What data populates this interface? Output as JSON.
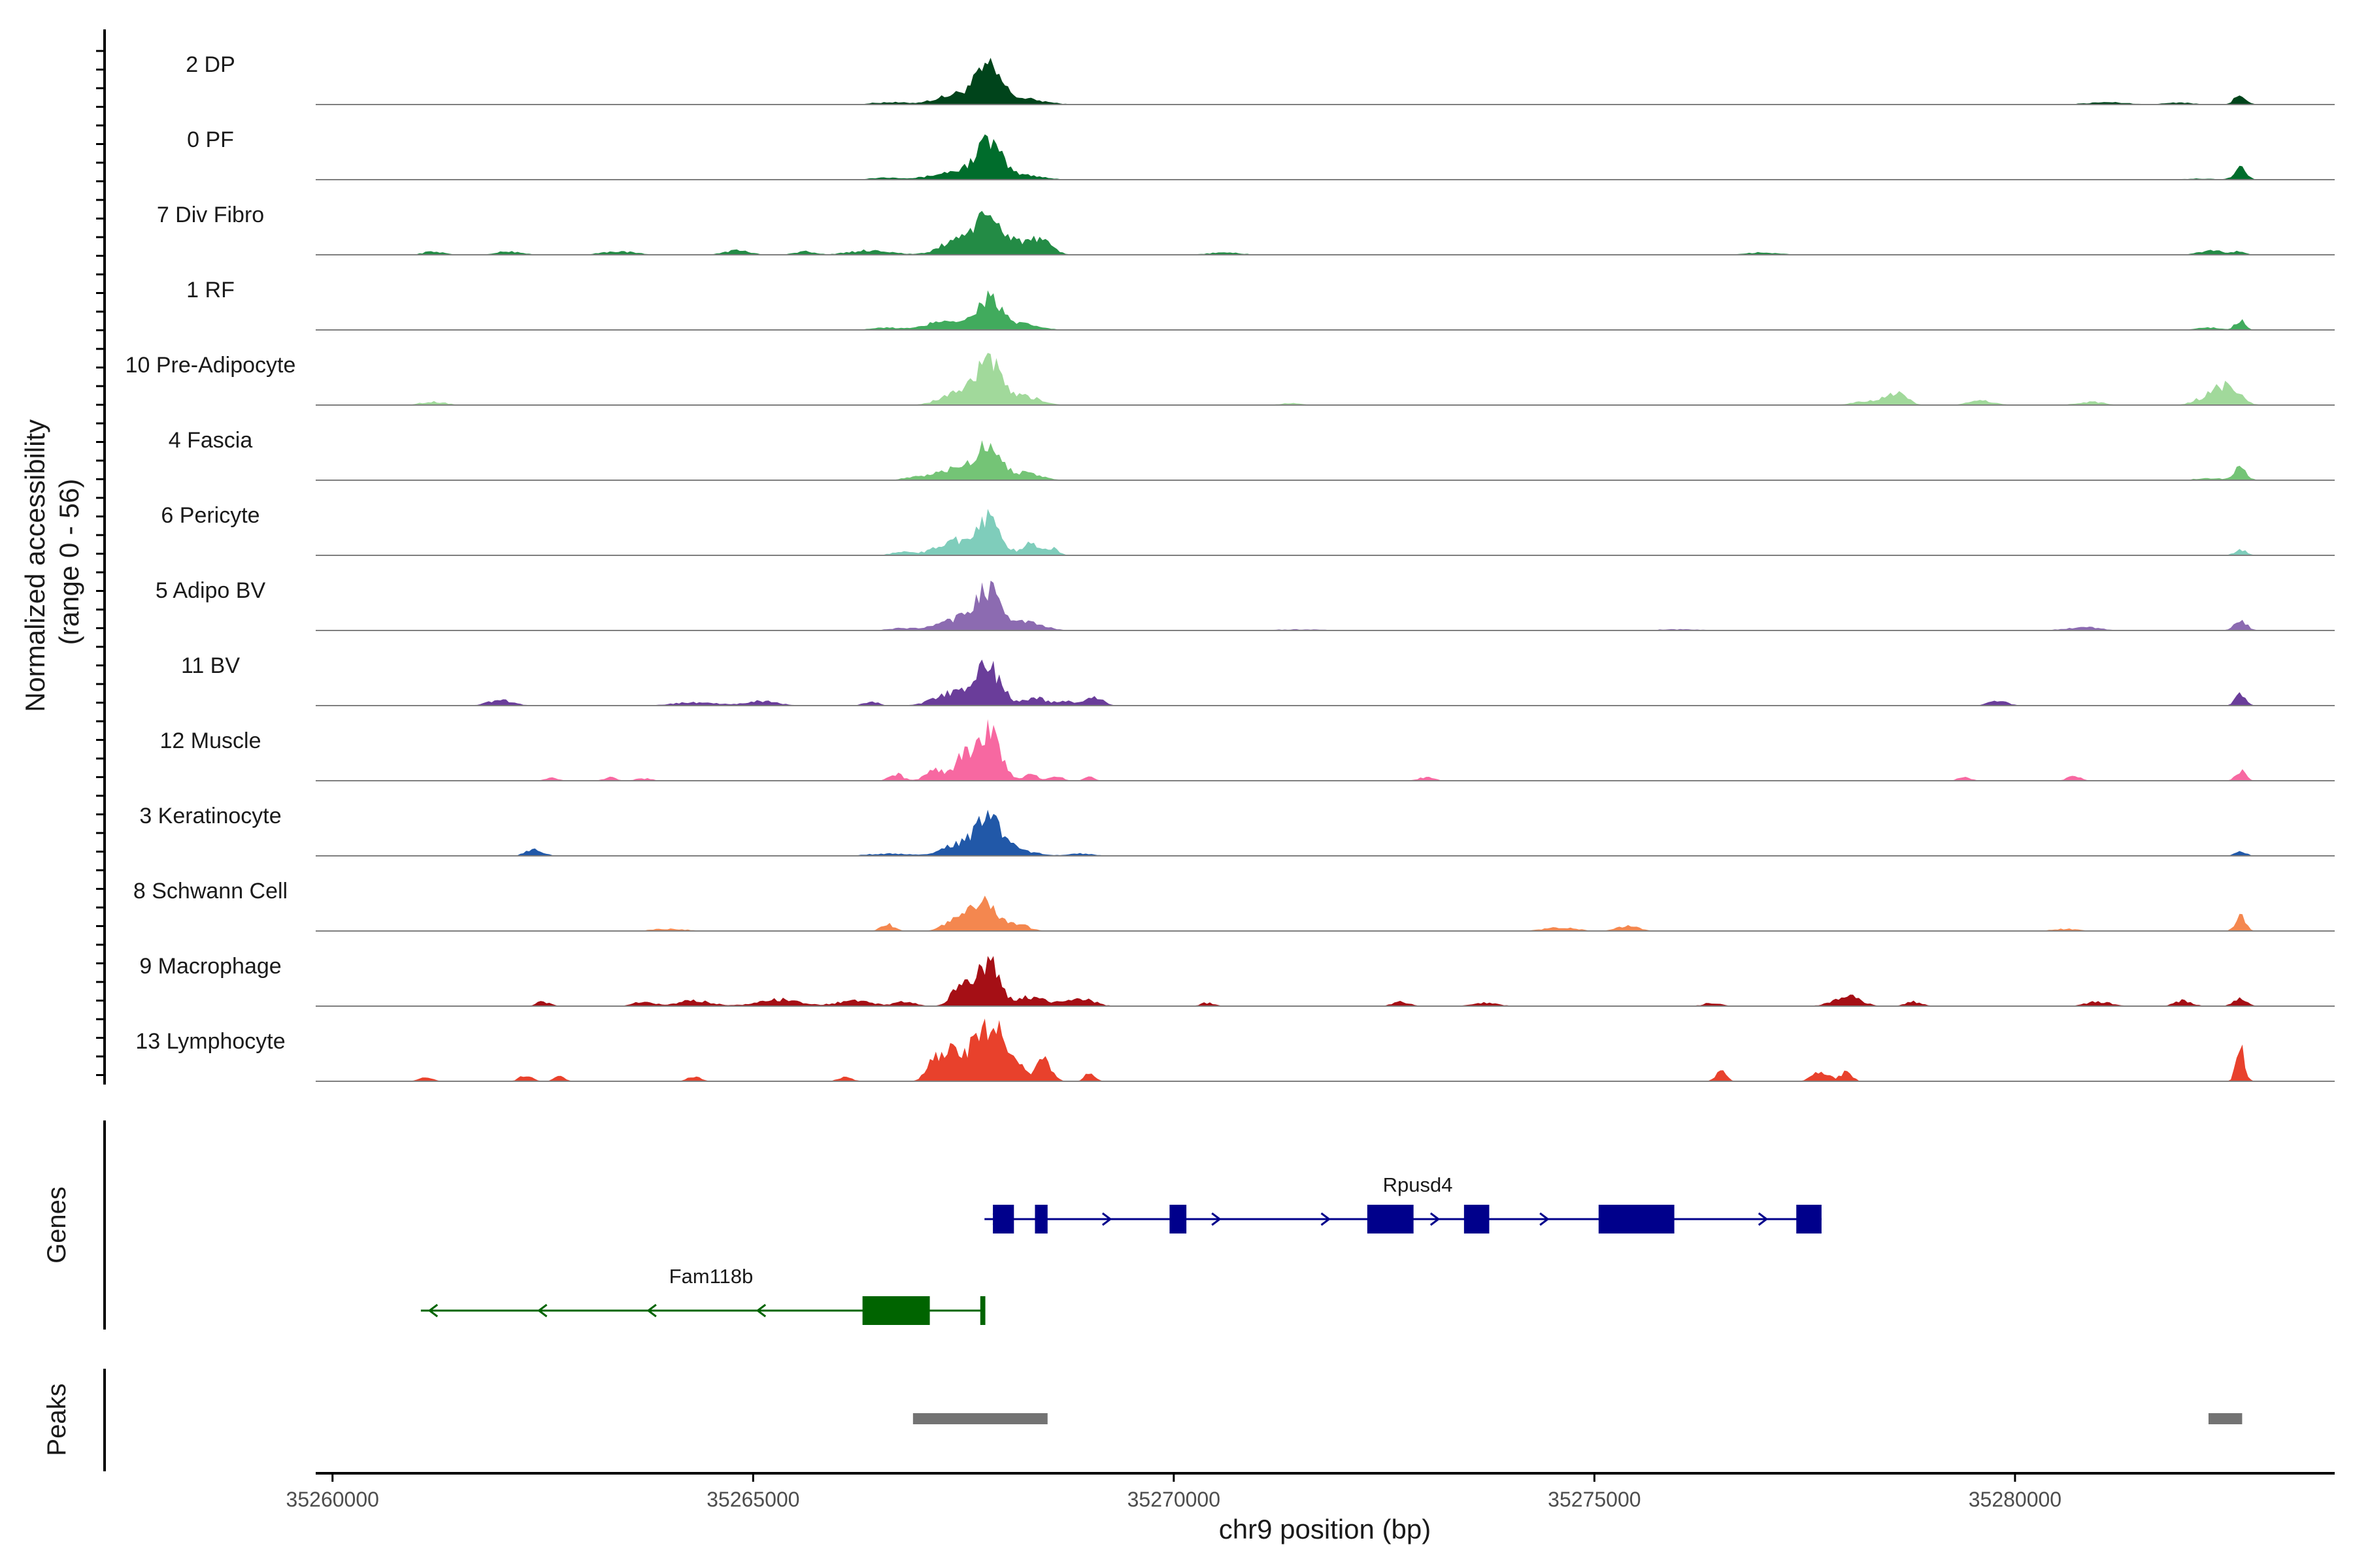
{
  "chart_data": {
    "type": "area",
    "title": "",
    "ylabel": "Normalized accessibility\n(range 0 - 56)",
    "ylabel_lines": [
      "Normalized accessibility",
      "(range 0 - 56)"
    ],
    "y_range": [
      0,
      56
    ],
    "xlabel": "chr9 position (bp)",
    "xlim": [
      35259800,
      35283800
    ],
    "x_ticks": [
      35260000,
      35265000,
      35270000,
      35275000,
      35280000
    ],
    "x_tick_labels": [
      "35260000",
      "35265000",
      "35270000",
      "35275000",
      "35280000"
    ],
    "series": [
      {
        "name": "2 DP",
        "color": "#00441b",
        "peaks": [
          [
            35267800,
            28,
            150
          ],
          [
            35267450,
            9,
            260
          ],
          [
            35268200,
            5,
            250
          ],
          [
            35266600,
            2,
            200
          ],
          [
            35282680,
            9,
            70
          ],
          [
            35281100,
            2,
            250
          ],
          [
            35281950,
            2,
            150
          ]
        ]
      },
      {
        "name": "0 PF",
        "color": "#006d2c",
        "peaks": [
          [
            35267800,
            32,
            150
          ],
          [
            35267400,
            7,
            250
          ],
          [
            35268250,
            4,
            200
          ],
          [
            35266600,
            2,
            200
          ],
          [
            35282680,
            10,
            70
          ],
          [
            35282200,
            1,
            200
          ]
        ]
      },
      {
        "name": "7 Div Fibro",
        "color": "#238b45",
        "peaks": [
          [
            35267800,
            28,
            160
          ],
          [
            35267450,
            14,
            200
          ],
          [
            35268200,
            11,
            200
          ],
          [
            35268450,
            7,
            120
          ],
          [
            35261200,
            3,
            120
          ],
          [
            35262100,
            3,
            150
          ],
          [
            35263400,
            3,
            200
          ],
          [
            35264800,
            4,
            150
          ],
          [
            35265600,
            3,
            120
          ],
          [
            35266400,
            4,
            250
          ],
          [
            35282350,
            4,
            150
          ],
          [
            35282680,
            3,
            60
          ],
          [
            35277000,
            2,
            200
          ],
          [
            35270600,
            2,
            200
          ]
        ]
      },
      {
        "name": "1 RF",
        "color": "#41ab5d",
        "peaks": [
          [
            35267800,
            28,
            140
          ],
          [
            35267300,
            9,
            200
          ],
          [
            35268200,
            5,
            200
          ],
          [
            35266600,
            2,
            200
          ],
          [
            35282680,
            9,
            60
          ],
          [
            35282300,
            2,
            150
          ]
        ]
      },
      {
        "name": "10 Pre-Adipocyte",
        "color": "#a1d99b",
        "peaks": [
          [
            35267800,
            38,
            130
          ],
          [
            35267450,
            12,
            200
          ],
          [
            35268200,
            8,
            200
          ],
          [
            35278600,
            9,
            120
          ],
          [
            35278300,
            4,
            200
          ],
          [
            35279600,
            4,
            150
          ],
          [
            35280900,
            3,
            150
          ],
          [
            35282500,
            18,
            150
          ],
          [
            35282200,
            4,
            120
          ],
          [
            35261200,
            3,
            150
          ],
          [
            35271400,
            2,
            120
          ]
        ]
      },
      {
        "name": "4 Fascia",
        "color": "#74c476",
        "peaks": [
          [
            35267800,
            30,
            150
          ],
          [
            35267400,
            10,
            220
          ],
          [
            35268250,
            6,
            180
          ],
          [
            35266900,
            2,
            150
          ],
          [
            35282680,
            12,
            70
          ],
          [
            35282300,
            2,
            150
          ]
        ]
      },
      {
        "name": "6 Pericyte",
        "color": "#7fcdbb",
        "peaks": [
          [
            35267800,
            32,
            140
          ],
          [
            35267400,
            13,
            200
          ],
          [
            35268300,
            10,
            100
          ],
          [
            35268550,
            6,
            80
          ],
          [
            35266800,
            3,
            150
          ],
          [
            35282680,
            5,
            70
          ]
        ]
      },
      {
        "name": "5 Adipo BV",
        "color": "#8c6bb1",
        "peaks": [
          [
            35267800,
            34,
            150
          ],
          [
            35267450,
            10,
            220
          ],
          [
            35268250,
            7,
            200
          ],
          [
            35266800,
            2,
            200
          ],
          [
            35280800,
            3,
            200
          ],
          [
            35282680,
            8,
            80
          ],
          [
            35271500,
            1,
            300
          ],
          [
            35276000,
            1,
            300
          ]
        ]
      },
      {
        "name": "11 BV",
        "color": "#6a3d9a",
        "peaks": [
          [
            35267800,
            32,
            150
          ],
          [
            35267400,
            12,
            220
          ],
          [
            35268350,
            7,
            120
          ],
          [
            35268700,
            4,
            120
          ],
          [
            35269050,
            8,
            100
          ],
          [
            35262000,
            5,
            150
          ],
          [
            35264300,
            3,
            250
          ],
          [
            35265100,
            4,
            200
          ],
          [
            35266400,
            4,
            80
          ],
          [
            35279800,
            4,
            120
          ],
          [
            35282680,
            12,
            60
          ]
        ]
      },
      {
        "name": "12 Muscle",
        "color": "#f768a1",
        "peaks": [
          [
            35267800,
            45,
            130
          ],
          [
            35267500,
            20,
            120
          ],
          [
            35267150,
            10,
            100
          ],
          [
            35268300,
            6,
            80
          ],
          [
            35268600,
            4,
            80
          ],
          [
            35269000,
            4,
            60
          ],
          [
            35266700,
            6,
            80
          ],
          [
            35262600,
            3,
            80
          ],
          [
            35263300,
            3,
            80
          ],
          [
            35263700,
            2,
            100
          ],
          [
            35273000,
            3,
            100
          ],
          [
            35279400,
            3,
            80
          ],
          [
            35280700,
            4,
            80
          ],
          [
            35282680,
            9,
            60
          ]
        ]
      },
      {
        "name": "3 Keratinocyte",
        "color": "#2158a8",
        "peaks": [
          [
            35267800,
            30,
            150
          ],
          [
            35267450,
            10,
            200
          ],
          [
            35268150,
            5,
            200
          ],
          [
            35262400,
            6,
            100
          ],
          [
            35268900,
            2,
            150
          ],
          [
            35266600,
            2,
            250
          ],
          [
            35282680,
            5,
            60
          ]
        ]
      },
      {
        "name": "8 Schwann Cell",
        "color": "#f4874f",
        "peaks": [
          [
            35267750,
            26,
            130
          ],
          [
            35267450,
            12,
            150
          ],
          [
            35268100,
            7,
            150
          ],
          [
            35266600,
            6,
            80
          ],
          [
            35275400,
            5,
            120
          ],
          [
            35274600,
            3,
            200
          ],
          [
            35280600,
            2,
            150
          ],
          [
            35264000,
            2,
            200
          ],
          [
            35282680,
            13,
            60
          ]
        ]
      },
      {
        "name": "9 Macrophage",
        "color": "#a50f15",
        "peaks": [
          [
            35267800,
            40,
            120
          ],
          [
            35267500,
            22,
            120
          ],
          [
            35268300,
            8,
            200
          ],
          [
            35268900,
            7,
            150
          ],
          [
            35265300,
            6,
            250
          ],
          [
            35264300,
            5,
            200
          ],
          [
            35262500,
            4,
            80
          ],
          [
            35263700,
            4,
            120
          ],
          [
            35266200,
            5,
            200
          ],
          [
            35266800,
            4,
            120
          ],
          [
            35270400,
            3,
            80
          ],
          [
            35272700,
            4,
            100
          ],
          [
            35273700,
            3,
            150
          ],
          [
            35276400,
            3,
            100
          ],
          [
            35278000,
            9,
            160
          ],
          [
            35278800,
            4,
            100
          ],
          [
            35281000,
            4,
            150
          ],
          [
            35282000,
            5,
            100
          ],
          [
            35282680,
            7,
            80
          ]
        ]
      },
      {
        "name": "13 Lymphocyte",
        "color": "#e8412c",
        "peaks": [
          [
            35267700,
            45,
            100
          ],
          [
            35267900,
            40,
            100
          ],
          [
            35267400,
            30,
            110
          ],
          [
            35267150,
            18,
            90
          ],
          [
            35268150,
            15,
            80
          ],
          [
            35268450,
            18,
            90
          ],
          [
            35269000,
            7,
            60
          ],
          [
            35261100,
            4,
            80
          ],
          [
            35262300,
            5,
            80
          ],
          [
            35262700,
            5,
            60
          ],
          [
            35264300,
            4,
            80
          ],
          [
            35266100,
            4,
            80
          ],
          [
            35276500,
            10,
            60
          ],
          [
            35277700,
            9,
            100
          ],
          [
            35278000,
            10,
            60
          ],
          [
            35282680,
            30,
            50
          ]
        ]
      }
    ],
    "genes": [
      {
        "name": "Rpusd4",
        "strand": "+",
        "start": 35267750,
        "end": 35277700,
        "color": "#00008b",
        "exons": [
          [
            35267850,
            35268100
          ],
          [
            35268350,
            35268500
          ],
          [
            35269950,
            35270150
          ],
          [
            35272300,
            35272850
          ],
          [
            35273450,
            35273750
          ],
          [
            35275050,
            35275950
          ],
          [
            35277400,
            35277700
          ]
        ]
      },
      {
        "name": "Fam118b",
        "strand": "-",
        "start": 35261050,
        "end": 35267760,
        "color": "#006400",
        "exons": [
          [
            35266300,
            35267100
          ],
          [
            35267700,
            35267760
          ]
        ]
      }
    ],
    "peak_regions": [
      [
        35266900,
        35268500
      ],
      [
        35282300,
        35282700
      ]
    ],
    "panels": {
      "genes_label": "Genes",
      "peaks_label": "Peaks"
    },
    "colors": {
      "axis": "#000000",
      "baseline": "#7f7f7f",
      "peak_region": "#737373",
      "tick_text": "#4d4d4d"
    }
  }
}
